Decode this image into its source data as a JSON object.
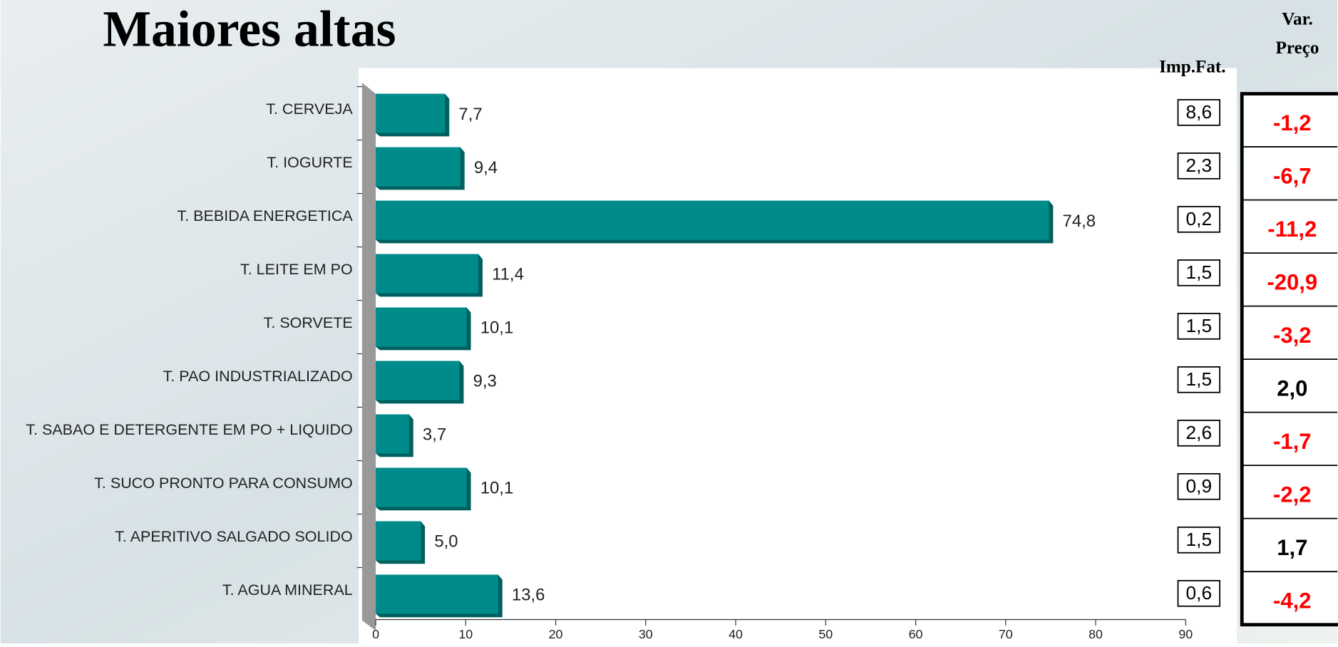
{
  "chart_data": {
    "type": "barh",
    "title": "Maiores altas",
    "categories": [
      "T. CERVEJA",
      "T. IOGURTE",
      "T. BEBIDA ENERGETICA",
      "T. LEITE EM PO",
      "T. SORVETE",
      "T. PAO INDUSTRIALIZADO",
      "T. SABAO E DETERGENTE EM PO + LIQUIDO",
      "T. SUCO PRONTO PARA CONSUMO",
      "T. APERITIVO SALGADO SOLIDO",
      "T. AGUA MINERAL"
    ],
    "values": [
      7.7,
      9.4,
      74.8,
      11.4,
      10.1,
      9.3,
      3.7,
      10.1,
      5.0,
      13.6
    ],
    "value_labels": [
      "7,7",
      "9,4",
      "74,8",
      "11,4",
      "10,1",
      "9,3",
      "3,7",
      "10,1",
      "5,0",
      "13,6"
    ],
    "color": "#008b8b",
    "xlim": [
      0,
      90
    ],
    "xticks": [
      0,
      10,
      20,
      30,
      40,
      50,
      60,
      70,
      80,
      90
    ]
  },
  "imp_fat": {
    "header": "Imp.Fat.",
    "values": [
      "8,6",
      "2,3",
      "0,2",
      "1,5",
      "1,5",
      "1,5",
      "2,6",
      "0,9",
      "1,5",
      "0,6"
    ]
  },
  "var_preco": {
    "header": [
      "Var.",
      "Preço"
    ],
    "values": [
      "-1,2",
      "-6,7",
      "-11,2",
      "-20,9",
      "-3,2",
      "2,0",
      "-1,7",
      "-2,2",
      "1,7",
      "-4,2"
    ]
  }
}
